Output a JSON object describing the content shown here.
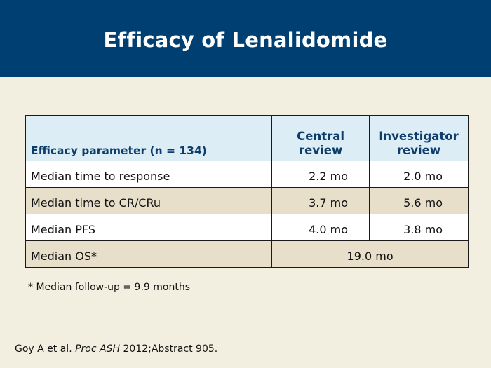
{
  "title": "Efficacy of Lenalidomide",
  "table": {
    "headers": {
      "param": "Efficacy parameter (n = 134)",
      "central_line1": "Central",
      "central_line2": "review",
      "investigator_line1": "Investigator",
      "investigator_line2": "review"
    },
    "rows": [
      {
        "label": "Median time to response",
        "central": "2.2 mo",
        "investigator": "2.0 mo"
      },
      {
        "label": "Median time to CR/CRu",
        "central": "3.7 mo",
        "investigator": "5.6 mo"
      },
      {
        "label": "Median PFS",
        "central": "4.0 mo",
        "investigator": "3.8 mo"
      },
      {
        "label": "Median OS*",
        "combined": "19.0 mo"
      }
    ]
  },
  "footnote": "* Median follow-up = 9.9 months",
  "citation": {
    "authors": "Goy A et al.",
    "journal": "Proc ASH",
    "details": "2012;Abstract 905."
  }
}
